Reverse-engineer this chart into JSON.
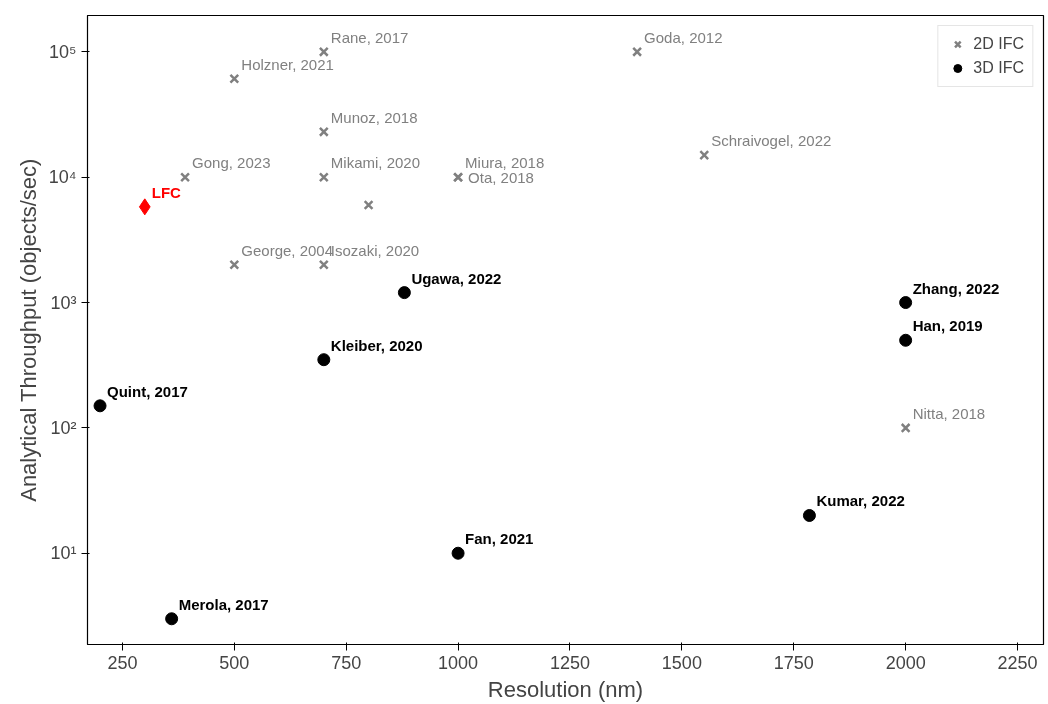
{
  "chart_data": {
    "type": "scatter",
    "xlabel": "Resolution (nm)",
    "ylabel": "Analytical Throughput (objects/sec)",
    "log": "y",
    "grid": false,
    "legend": "top right",
    "xlim": [
      172,
      2308
    ],
    "ylim": [
      1.87,
      195000
    ],
    "xticks": [
      250,
      500,
      750,
      1000,
      1250,
      1500,
      1750,
      2000,
      2250
    ],
    "yticks": [
      {
        "value": 10,
        "label": "10¹"
      },
      {
        "value": 100,
        "label": "10²"
      },
      {
        "value": 1000,
        "label": "10³"
      },
      {
        "value": 10000,
        "label": "10⁴"
      },
      {
        "value": 100000,
        "label": "10⁵"
      }
    ],
    "series": [
      {
        "name": "2D IFC",
        "color": "#808080",
        "marker": "cross",
        "x": [
          700,
          1400,
          500,
          700,
          1550,
          390,
          700,
          1000,
          1000,
          800,
          500,
          700,
          2000
        ],
        "values": [
          100000,
          100000,
          61000,
          23000,
          15000,
          10000,
          10000,
          10000,
          10000,
          6000,
          2000,
          2000,
          100
        ]
      },
      {
        "name": "3D IFC",
        "color": "#000000",
        "marker": "circle",
        "x": [
          880,
          2000,
          2000,
          700,
          200,
          1785,
          1000,
          360
        ],
        "values": [
          1200,
          1000,
          500,
          350,
          150,
          20,
          10,
          3
        ]
      },
      {
        "color": "#ff0000",
        "marker": "diamond",
        "x": [
          300
        ],
        "values": [
          5800
        ]
      }
    ],
    "annotations": [
      {
        "text": "Rane, 2017",
        "x": 700,
        "y": 100000
      },
      {
        "text": "Goda, 2012",
        "x": 1400,
        "y": 100000
      },
      {
        "text": "Holzner, 2021",
        "x": 500,
        "y": 61000
      },
      {
        "text": "Munoz, 2018",
        "x": 700,
        "y": 23000
      },
      {
        "text": "Schraivogel, 2022",
        "x": 1550,
        "y": 15000
      },
      {
        "text": "Gong, 2023",
        "x": 390,
        "y": 10000
      },
      {
        "text": "Mikami, 2020",
        "x": 700,
        "y": 10000
      },
      {
        "text": "Miura, 2018",
        "x": 1000,
        "y": 10000
      },
      {
        "text": "Ota, 2018",
        "x": 1000,
        "y": 10000
      },
      {
        "text": "George, 2004",
        "x": 500,
        "y": 2000
      },
      {
        "text": "Isozaki, 2020",
        "x": 700,
        "y": 2000
      },
      {
        "text": "Nitta, 2018",
        "x": 2000,
        "y": 100
      },
      {
        "text": "Ugawa, 2022",
        "x": 880,
        "y": 1200
      },
      {
        "text": "Zhang, 2022",
        "x": 2000,
        "y": 1000
      },
      {
        "text": "Han, 2019",
        "x": 2000,
        "y": 500
      },
      {
        "text": "Kleiber, 2020",
        "x": 700,
        "y": 350
      },
      {
        "text": "Quint, 2017",
        "x": 200,
        "y": 150
      },
      {
        "text": "Kumar, 2022",
        "x": 1785,
        "y": 20
      },
      {
        "text": "Fan, 2021",
        "x": 1000,
        "y": 10
      },
      {
        "text": "Merola, 2017",
        "x": 360,
        "y": 3
      },
      {
        "text": "LFC",
        "x": 300,
        "y": 5800
      }
    ]
  }
}
